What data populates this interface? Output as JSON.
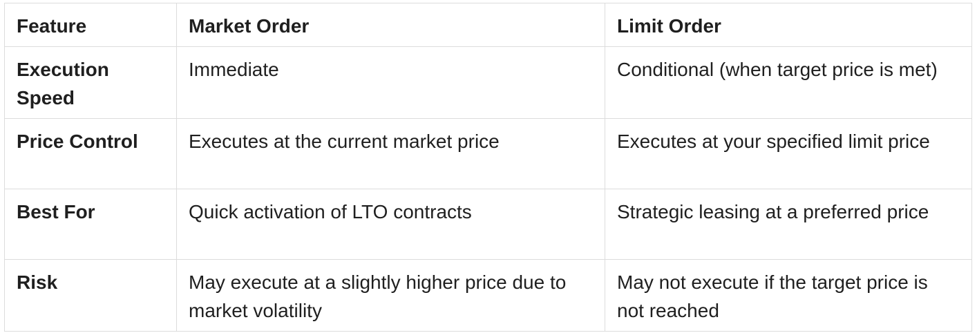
{
  "table": {
    "header": [
      "Feature",
      "Market Order",
      "Limit Order"
    ],
    "rows": [
      [
        "Execution Speed",
        "Immediate",
        "Conditional (when target price is met)"
      ],
      [
        "Price Control",
        "Executes at the current market price",
        "Executes at your specified limit price"
      ],
      [
        "Best For",
        "Quick activation of LTO contracts",
        "Strategic leasing at a preferred price"
      ],
      [
        "Risk",
        "May execute at a slightly higher price due to market volatility",
        "May not execute if the target price is not reached"
      ]
    ]
  }
}
